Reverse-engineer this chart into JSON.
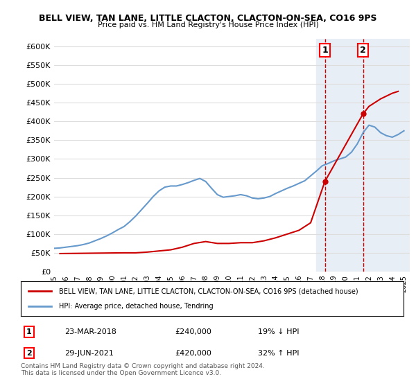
{
  "title": "BELL VIEW, TAN LANE, LITTLE CLACTON, CLACTON-ON-SEA, CO16 9PS",
  "subtitle": "Price paid vs. HM Land Registry's House Price Index (HPI)",
  "legend_line1": "BELL VIEW, TAN LANE, LITTLE CLACTON, CLACTON-ON-SEA, CO16 9PS (detached house)",
  "legend_line2": "HPI: Average price, detached house, Tendring",
  "footer": "Contains HM Land Registry data © Crown copyright and database right 2024.\nThis data is licensed under the Open Government Licence v3.0.",
  "marker1_label": "1",
  "marker1_date": "23-MAR-2018",
  "marker1_price": "£240,000",
  "marker1_hpi": "19% ↓ HPI",
  "marker1_year": 2018.22,
  "marker2_label": "2",
  "marker2_date": "29-JUN-2021",
  "marker2_price": "£420,000",
  "marker2_hpi": "32% ↑ HPI",
  "marker2_year": 2021.49,
  "red_color": "#cc0000",
  "blue_color": "#6699cc",
  "bg_color": "#ffffff",
  "grid_color": "#dddddd",
  "ylim": [
    0,
    620000
  ],
  "yticks": [
    0,
    50000,
    100000,
    150000,
    200000,
    250000,
    300000,
    350000,
    400000,
    450000,
    500000,
    550000,
    600000
  ],
  "xlim_start": 1995.0,
  "xlim_end": 2025.5,
  "shaded_region_start": 2017.5,
  "shaded_region_end": 2025.5,
  "shaded_color": "#e8eef5",
  "hpi_x": [
    1995,
    1995.5,
    1996,
    1996.5,
    1997,
    1997.5,
    1998,
    1998.5,
    1999,
    1999.5,
    2000,
    2000.5,
    2001,
    2001.5,
    2002,
    2002.5,
    2003,
    2003.5,
    2004,
    2004.5,
    2005,
    2005.5,
    2006,
    2006.5,
    2007,
    2007.5,
    2008,
    2008.5,
    2009,
    2009.5,
    2010,
    2010.5,
    2011,
    2011.5,
    2012,
    2012.5,
    2013,
    2013.5,
    2014,
    2014.5,
    2015,
    2015.5,
    2016,
    2016.5,
    2017,
    2017.5,
    2018,
    2018.5,
    2019,
    2019.5,
    2020,
    2020.5,
    2021,
    2021.5,
    2022,
    2022.5,
    2023,
    2023.5,
    2024,
    2024.5,
    2025
  ],
  "hpi_y": [
    62000,
    63000,
    65000,
    67000,
    69000,
    72000,
    76000,
    82000,
    88000,
    95000,
    103000,
    112000,
    120000,
    133000,
    148000,
    165000,
    182000,
    200000,
    215000,
    225000,
    228000,
    228000,
    232000,
    237000,
    243000,
    248000,
    240000,
    222000,
    205000,
    198000,
    200000,
    202000,
    205000,
    202000,
    196000,
    194000,
    196000,
    200000,
    208000,
    215000,
    222000,
    228000,
    235000,
    242000,
    255000,
    268000,
    282000,
    288000,
    295000,
    300000,
    305000,
    318000,
    340000,
    370000,
    390000,
    385000,
    370000,
    362000,
    358000,
    365000,
    375000
  ],
  "price_x": [
    1995.5,
    2001,
    2002,
    2003,
    2004,
    2005,
    2006,
    2007,
    2008,
    2009,
    2010,
    2011,
    2012,
    2013,
    2014,
    2015,
    2016,
    2017,
    2018.22,
    2021.49,
    2022,
    2023,
    2024,
    2024.5
  ],
  "price_y": [
    48000,
    50000,
    50000,
    52000,
    55000,
    58000,
    65000,
    75000,
    80000,
    75000,
    75000,
    77000,
    77000,
    82000,
    90000,
    100000,
    110000,
    130000,
    240000,
    420000,
    440000,
    460000,
    475000,
    480000
  ]
}
